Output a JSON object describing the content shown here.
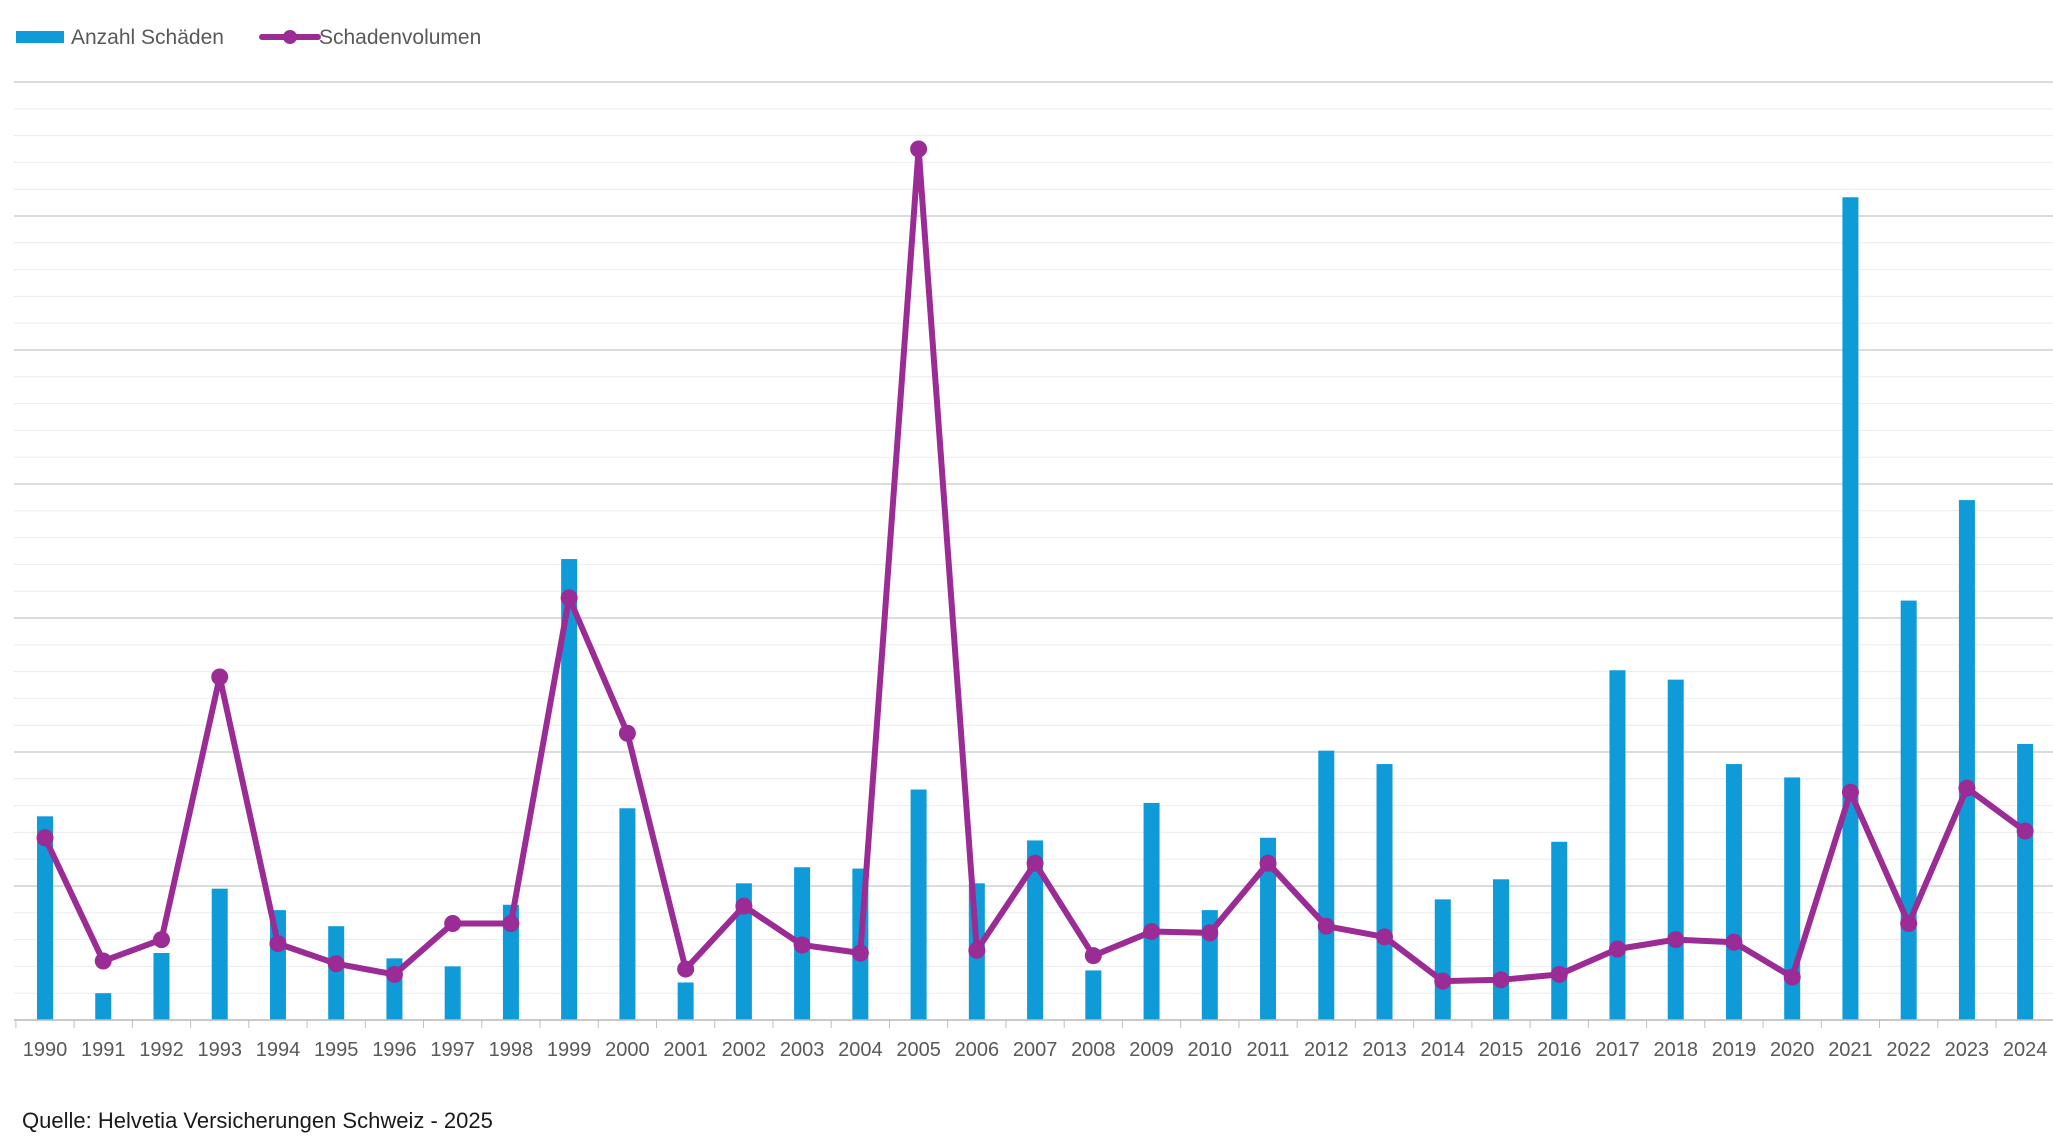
{
  "legend": {
    "bars_label": "Anzahl Schäden",
    "line_label": "Schadenvolumen"
  },
  "source": "Quelle: Helvetia Versicherungen Schweiz - 2025",
  "colors": {
    "bars": "#0F9BD7",
    "line": "#9B2B95",
    "grid": "#D9D9D9",
    "axis": "#BFBFBF",
    "text": "#595959"
  },
  "chart_data": {
    "type": "bar",
    "title": "",
    "xlabel": "",
    "ylabel": "",
    "grid": true,
    "legend_position": "top-left",
    "y_axis_labels_shown": false,
    "categories": [
      "1990",
      "1991",
      "1992",
      "1993",
      "1994",
      "1995",
      "1996",
      "1997",
      "1998",
      "1999",
      "2000",
      "2001",
      "2002",
      "2003",
      "2004",
      "2005",
      "2006",
      "2007",
      "2008",
      "2009",
      "2010",
      "2011",
      "2012",
      "2013",
      "2014",
      "2015",
      "2016",
      "2017",
      "2018",
      "2019",
      "2020",
      "2021",
      "2022",
      "2023",
      "2024"
    ],
    "ylim": [
      0,
      35
    ],
    "series": [
      {
        "name": "Anzahl Schäden",
        "type": "bar",
        "values": [
          7.6,
          1.0,
          2.5,
          4.9,
          4.1,
          3.5,
          2.3,
          2.0,
          4.3,
          17.2,
          7.9,
          1.4,
          5.1,
          5.7,
          5.65,
          8.6,
          5.1,
          6.7,
          1.85,
          8.1,
          4.1,
          6.8,
          10.05,
          9.55,
          4.5,
          5.25,
          6.65,
          13.05,
          12.7,
          9.55,
          9.05,
          30.7,
          15.65,
          19.4,
          10.3
        ]
      },
      {
        "name": "Schadenvolumen",
        "type": "line",
        "values": [
          6.8,
          2.2,
          3.0,
          12.8,
          2.85,
          2.1,
          1.7,
          3.6,
          3.6,
          15.75,
          10.7,
          1.9,
          4.25,
          2.8,
          2.5,
          32.5,
          2.6,
          5.85,
          2.4,
          3.3,
          3.25,
          5.85,
          3.5,
          3.1,
          1.45,
          1.5,
          1.7,
          2.65,
          3.0,
          2.9,
          1.6,
          8.5,
          3.6,
          8.65,
          7.05
        ]
      }
    ]
  }
}
